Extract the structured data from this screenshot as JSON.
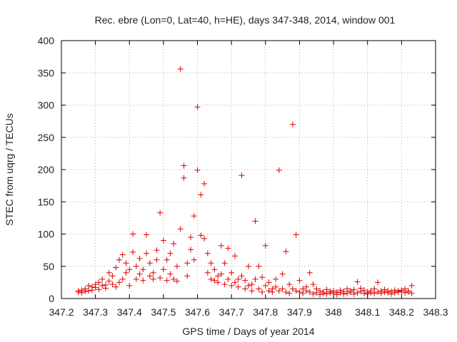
{
  "chart_data": {
    "type": "scatter",
    "title": "Rec. ebre (Lon=0, Lat=40, h=HE), days 347-348, 2014, window 001",
    "xlabel": "GPS time / Days of year 2014",
    "ylabel": "STEC from uqrg / TECUs",
    "xlim": [
      347.2,
      348.3
    ],
    "ylim": [
      0,
      400
    ],
    "xticks": [
      347.2,
      347.3,
      347.4,
      347.5,
      347.6,
      347.7,
      347.8,
      347.9,
      348,
      348.1,
      348.2,
      348.3
    ],
    "xtick_labels": [
      "347.2",
      "347.3",
      "347.4",
      "347.5",
      "347.6",
      "347.7",
      "347.8",
      "347.9",
      "348",
      "348.1",
      "348.2",
      "348.3"
    ],
    "yticks": [
      0,
      50,
      100,
      150,
      200,
      250,
      300,
      350,
      400
    ],
    "ytick_labels": [
      "0",
      "50",
      "100",
      "150",
      "200",
      "250",
      "300",
      "350",
      "400"
    ],
    "grid": true,
    "marker": "+",
    "color": "#e00000",
    "series": [
      {
        "name": "STEC",
        "points": [
          [
            347.25,
            10
          ],
          [
            347.25,
            12
          ],
          [
            347.26,
            13
          ],
          [
            347.26,
            9
          ],
          [
            347.27,
            15
          ],
          [
            347.27,
            11
          ],
          [
            347.28,
            12
          ],
          [
            347.28,
            20
          ],
          [
            347.29,
            18
          ],
          [
            347.29,
            13
          ],
          [
            347.3,
            17
          ],
          [
            347.3,
            22
          ],
          [
            347.31,
            14
          ],
          [
            347.31,
            25
          ],
          [
            347.32,
            20
          ],
          [
            347.32,
            30
          ],
          [
            347.33,
            21
          ],
          [
            347.33,
            16
          ],
          [
            347.34,
            27
          ],
          [
            347.34,
            40
          ],
          [
            347.35,
            22
          ],
          [
            347.35,
            35
          ],
          [
            347.36,
            18
          ],
          [
            347.36,
            48
          ],
          [
            347.37,
            25
          ],
          [
            347.37,
            60
          ],
          [
            347.38,
            30
          ],
          [
            347.38,
            68
          ],
          [
            347.39,
            40
          ],
          [
            347.39,
            55
          ],
          [
            347.4,
            20
          ],
          [
            347.4,
            45
          ],
          [
            347.41,
            72
          ],
          [
            347.41,
            100
          ],
          [
            347.42,
            30
          ],
          [
            347.42,
            50
          ],
          [
            347.43,
            38
          ],
          [
            347.43,
            62
          ],
          [
            347.44,
            45
          ],
          [
            347.44,
            28
          ],
          [
            347.45,
            70
          ],
          [
            347.45,
            99
          ],
          [
            347.46,
            35
          ],
          [
            347.46,
            55
          ],
          [
            347.47,
            40
          ],
          [
            347.47,
            30
          ],
          [
            347.48,
            60
          ],
          [
            347.48,
            75
          ],
          [
            347.49,
            133
          ],
          [
            347.49,
            32
          ],
          [
            347.5,
            45
          ],
          [
            347.5,
            90
          ],
          [
            347.51,
            28
          ],
          [
            347.51,
            60
          ],
          [
            347.52,
            38
          ],
          [
            347.52,
            70
          ],
          [
            347.53,
            30
          ],
          [
            347.53,
            85
          ],
          [
            347.54,
            50
          ],
          [
            347.54,
            27
          ],
          [
            347.55,
            356
          ],
          [
            347.55,
            108
          ],
          [
            347.56,
            206
          ],
          [
            347.56,
            187
          ],
          [
            347.57,
            55
          ],
          [
            347.57,
            35
          ],
          [
            347.58,
            95
          ],
          [
            347.58,
            76
          ],
          [
            347.59,
            128
          ],
          [
            347.59,
            60
          ],
          [
            347.6,
            297
          ],
          [
            347.6,
            199
          ],
          [
            347.61,
            161
          ],
          [
            347.61,
            98
          ],
          [
            347.62,
            178
          ],
          [
            347.62,
            93
          ],
          [
            347.63,
            70
          ],
          [
            347.63,
            40
          ],
          [
            347.64,
            55
          ],
          [
            347.64,
            30
          ],
          [
            347.65,
            45
          ],
          [
            347.65,
            28
          ],
          [
            347.66,
            35
          ],
          [
            347.66,
            25
          ],
          [
            347.67,
            82
          ],
          [
            347.67,
            38
          ],
          [
            347.68,
            55
          ],
          [
            347.68,
            22
          ],
          [
            347.69,
            78
          ],
          [
            347.69,
            30
          ],
          [
            347.7,
            40
          ],
          [
            347.7,
            20
          ],
          [
            347.71,
            66
          ],
          [
            347.71,
            25
          ],
          [
            347.72,
            30
          ],
          [
            347.72,
            18
          ],
          [
            347.73,
            191
          ],
          [
            347.73,
            35
          ],
          [
            347.74,
            28
          ],
          [
            347.74,
            15
          ],
          [
            347.75,
            50
          ],
          [
            347.75,
            20
          ],
          [
            347.76,
            22
          ],
          [
            347.76,
            12
          ],
          [
            347.77,
            120
          ],
          [
            347.77,
            30
          ],
          [
            347.78,
            50
          ],
          [
            347.78,
            15
          ],
          [
            347.79,
            33
          ],
          [
            347.79,
            10
          ],
          [
            347.8,
            82
          ],
          [
            347.8,
            20
          ],
          [
            347.81,
            12
          ],
          [
            347.81,
            25
          ],
          [
            347.82,
            15
          ],
          [
            347.82,
            10
          ],
          [
            347.83,
            18
          ],
          [
            347.83,
            30
          ],
          [
            347.84,
            199
          ],
          [
            347.84,
            12
          ],
          [
            347.85,
            38
          ],
          [
            347.85,
            15
          ],
          [
            347.86,
            73
          ],
          [
            347.86,
            10
          ],
          [
            347.87,
            22
          ],
          [
            347.87,
            8
          ],
          [
            347.88,
            270
          ],
          [
            347.88,
            15
          ],
          [
            347.89,
            99
          ],
          [
            347.89,
            12
          ],
          [
            347.9,
            28
          ],
          [
            347.9,
            10
          ],
          [
            347.91,
            15
          ],
          [
            347.91,
            8
          ],
          [
            347.92,
            18
          ],
          [
            347.92,
            12
          ],
          [
            347.93,
            40
          ],
          [
            347.93,
            10
          ],
          [
            347.94,
            22
          ],
          [
            347.94,
            7
          ],
          [
            347.95,
            15
          ],
          [
            347.95,
            9
          ],
          [
            347.96,
            12
          ],
          [
            347.96,
            6
          ],
          [
            347.97,
            10
          ],
          [
            347.97,
            8
          ],
          [
            347.98,
            14
          ],
          [
            347.98,
            7
          ],
          [
            347.99,
            9
          ],
          [
            347.99,
            11
          ],
          [
            348.0,
            8
          ],
          [
            348.0,
            12
          ],
          [
            348.01,
            10
          ],
          [
            348.01,
            6
          ],
          [
            348.02,
            9
          ],
          [
            348.02,
            13
          ],
          [
            348.03,
            7
          ],
          [
            348.03,
            11
          ],
          [
            348.04,
            15
          ],
          [
            348.04,
            8
          ],
          [
            348.05,
            10
          ],
          [
            348.05,
            12
          ],
          [
            348.06,
            7
          ],
          [
            348.06,
            14
          ],
          [
            348.07,
            26
          ],
          [
            348.07,
            9
          ],
          [
            348.08,
            11
          ],
          [
            348.08,
            16
          ],
          [
            348.09,
            8
          ],
          [
            348.09,
            13
          ],
          [
            348.1,
            10
          ],
          [
            348.1,
            7
          ],
          [
            348.11,
            12
          ],
          [
            348.11,
            9
          ],
          [
            348.12,
            15
          ],
          [
            348.12,
            8
          ],
          [
            348.13,
            25
          ],
          [
            348.13,
            10
          ],
          [
            348.14,
            12
          ],
          [
            348.14,
            8
          ],
          [
            348.15,
            10
          ],
          [
            348.15,
            14
          ],
          [
            348.16,
            9
          ],
          [
            348.16,
            12
          ],
          [
            348.17,
            11
          ],
          [
            348.17,
            7
          ],
          [
            348.18,
            13
          ],
          [
            348.18,
            9
          ],
          [
            348.19,
            12
          ],
          [
            348.19,
            10
          ],
          [
            348.2,
            11
          ],
          [
            348.2,
            13
          ],
          [
            348.21,
            9
          ],
          [
            348.21,
            15
          ],
          [
            348.22,
            12
          ],
          [
            348.22,
            10
          ],
          [
            348.23,
            20
          ],
          [
            348.23,
            8
          ]
        ]
      }
    ]
  }
}
